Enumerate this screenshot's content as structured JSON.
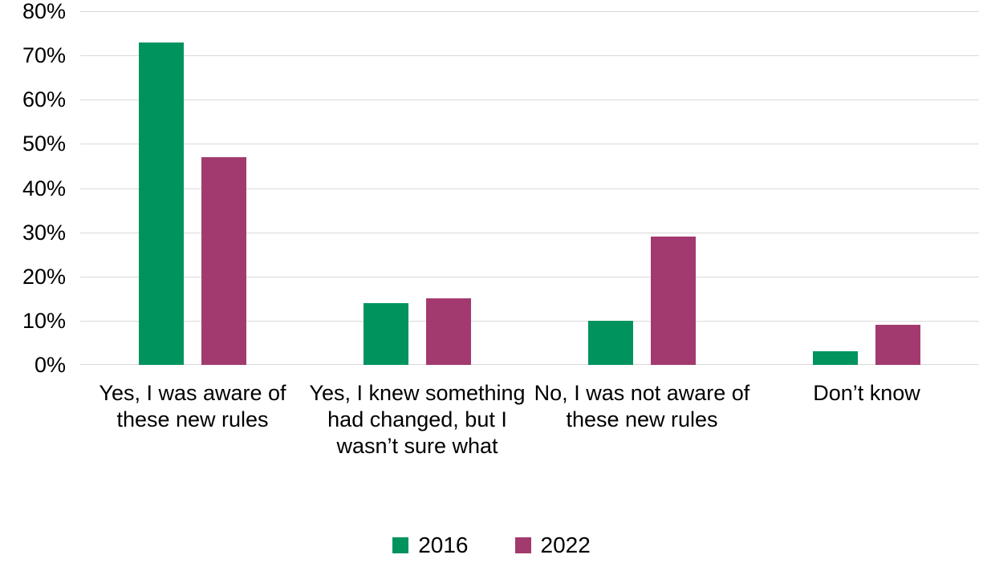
{
  "chart_data": {
    "type": "bar",
    "title": "",
    "xlabel": "",
    "ylabel": "",
    "categories": [
      "Yes, I was aware of these new rules",
      "Yes, I knew something had changed, but I wasn’t sure what",
      "No, I was not aware of these new rules",
      "Don’t know"
    ],
    "series": [
      {
        "name": "2016",
        "color": "#00935e",
        "values": [
          73,
          14,
          10,
          3
        ]
      },
      {
        "name": "2022",
        "color": "#a23a6f",
        "values": [
          47,
          15,
          29,
          9
        ]
      }
    ],
    "ylim": [
      0,
      80
    ],
    "ytick_step": 10,
    "ytick_suffix": "%",
    "grid": true,
    "legend_position": "bottom"
  },
  "colors": {
    "gridline": "#d9d9d9",
    "text": "#000000",
    "background": "#ffffff"
  }
}
